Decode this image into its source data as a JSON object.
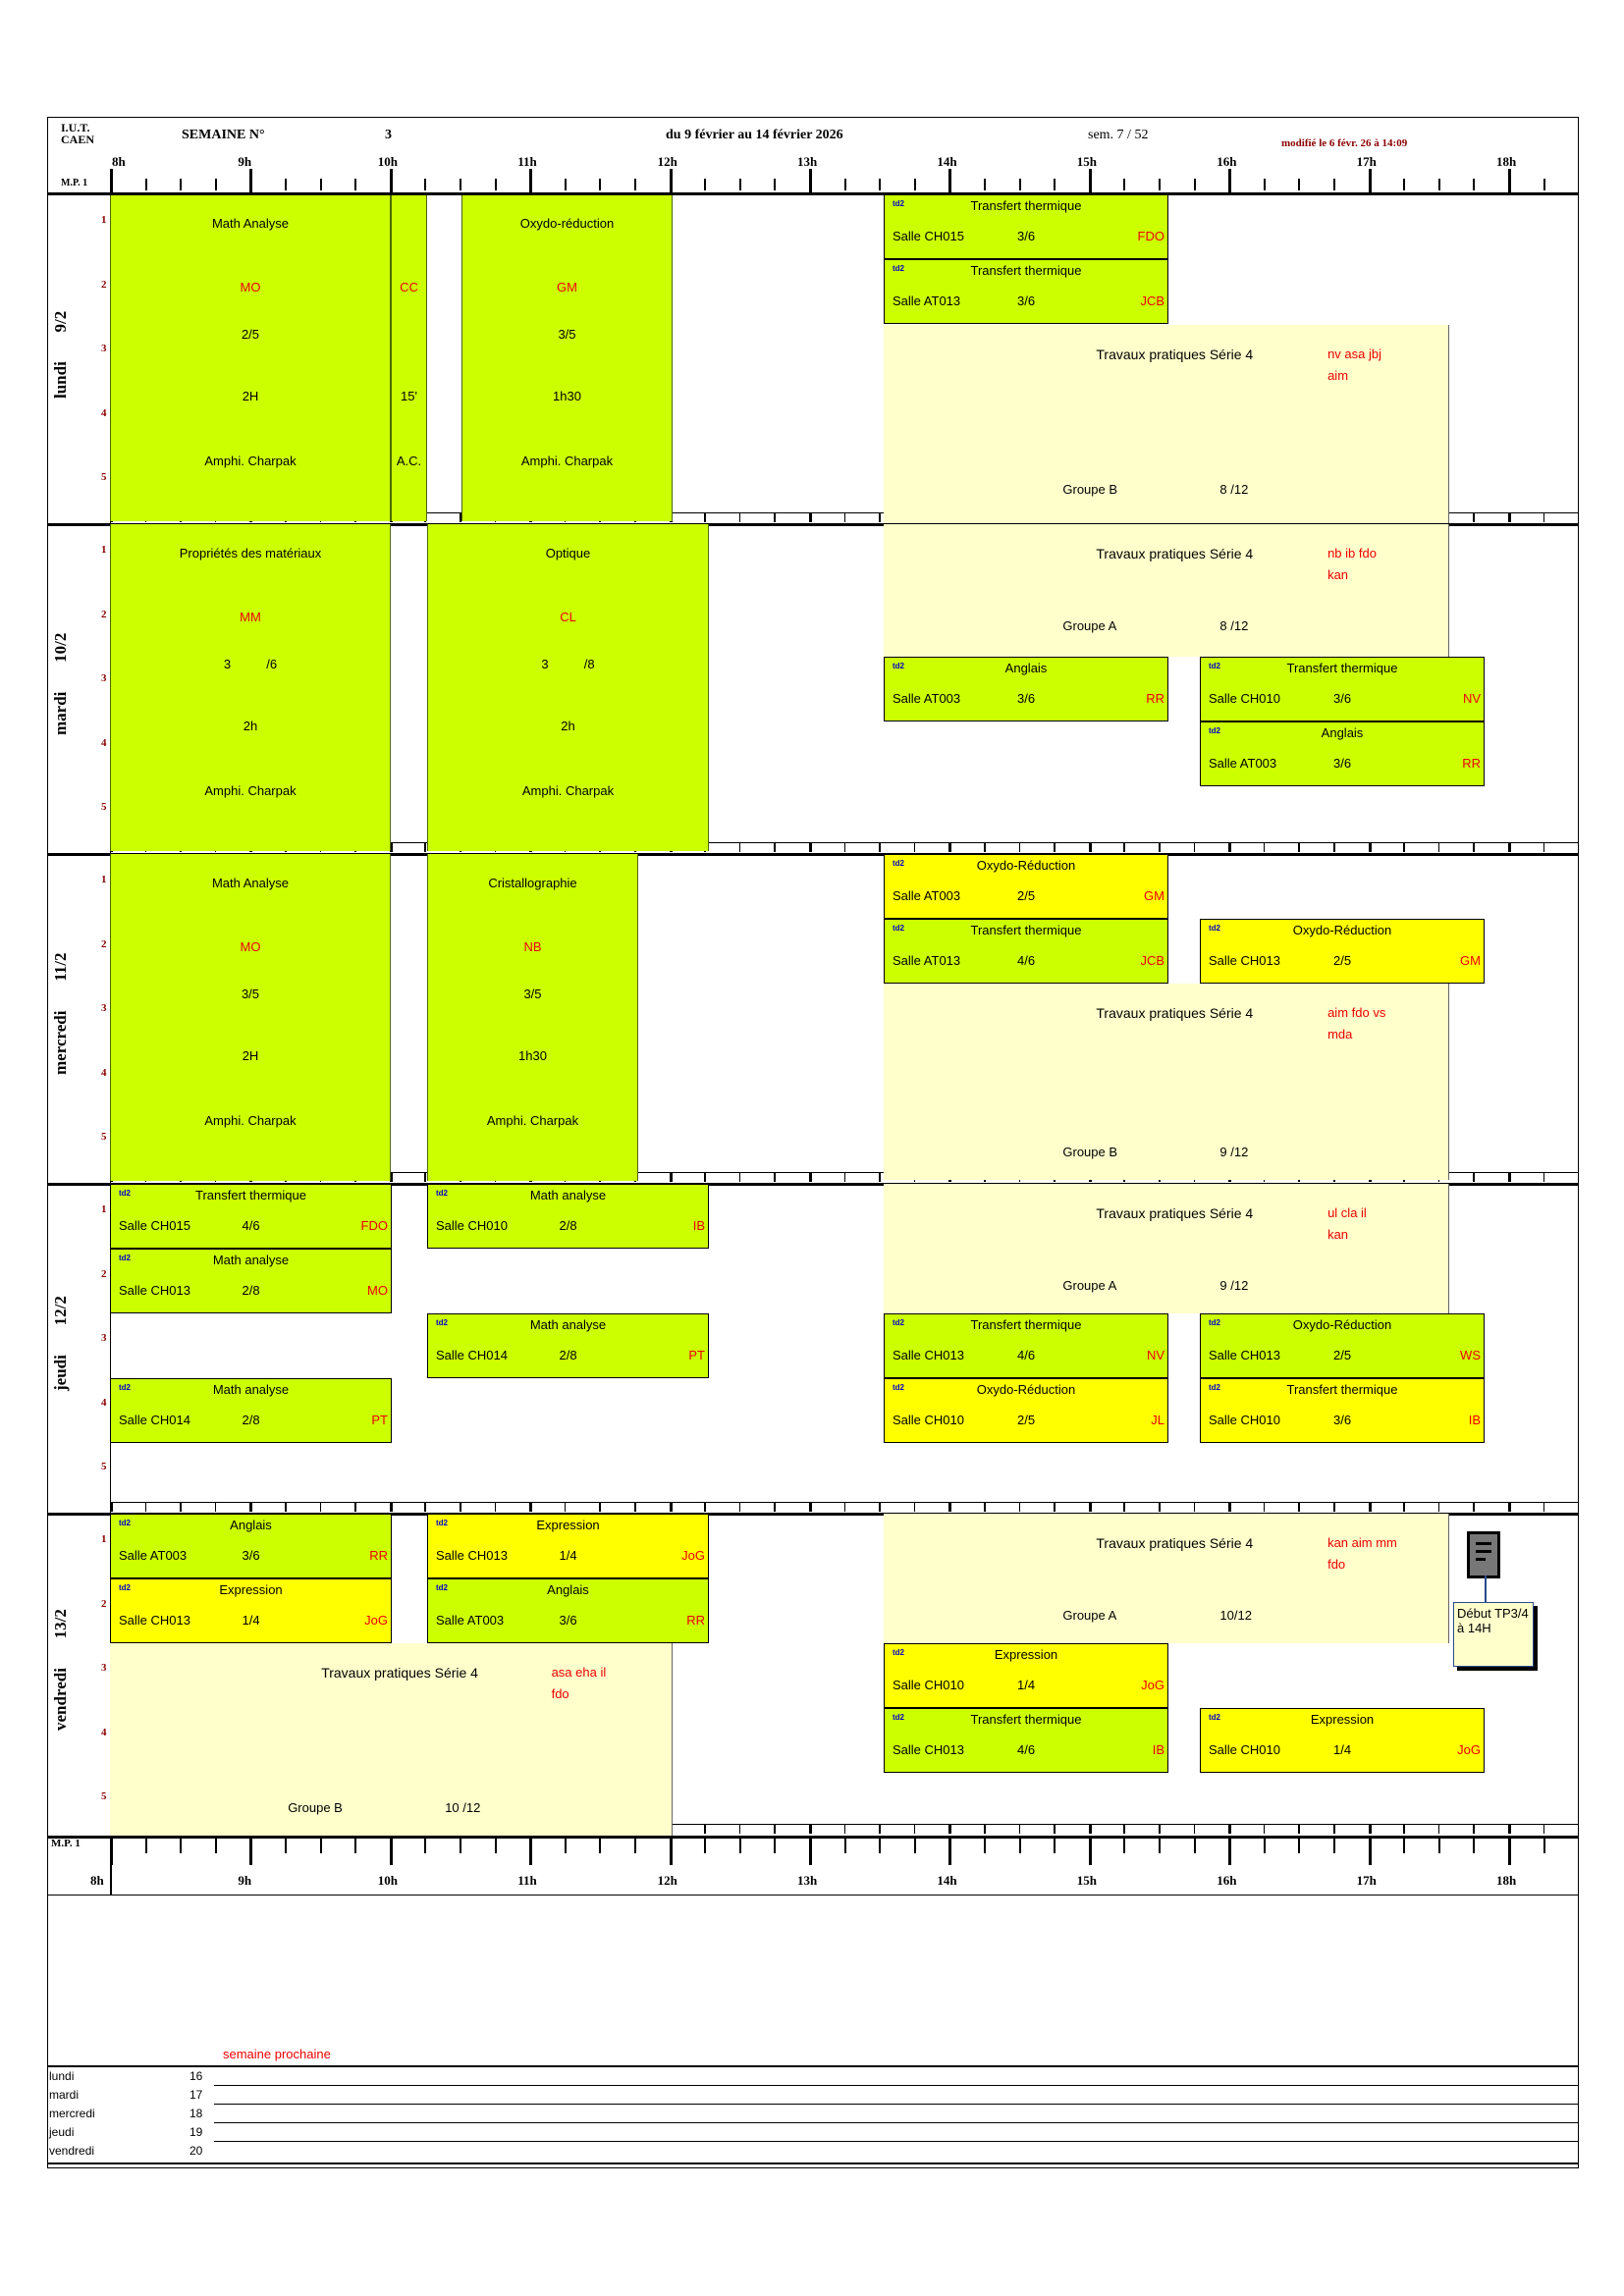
{
  "header": {
    "institution_line1": "I.U.T.",
    "institution_line2": "CAEN",
    "week_label": "SEMAINE N°",
    "week_number": "3",
    "date_range": "du 9 février au 14 février 2026",
    "semester_week": "sem. 7 / 52",
    "modified": "modifié le 6 févr. 26 à 14:09",
    "group": "M.P. 1"
  },
  "hours": [
    "8h",
    "9h",
    "10h",
    "11h",
    "12h",
    "13h",
    "14h",
    "15h",
    "16h",
    "17h",
    "18h"
  ],
  "slot_numbers": [
    "1",
    "2",
    "3",
    "4",
    "5"
  ],
  "days": [
    {
      "name": "lundi",
      "date": "9/2",
      "courses": [
        {
          "title": "Math Analyse",
          "teacher": "MO",
          "fraction": "2/5",
          "duration": "2H",
          "room": "Amphi. Charpak"
        },
        {
          "title": "",
          "teacher": "CC",
          "fraction": "",
          "duration": "15'",
          "room": "A.C."
        },
        {
          "title": "Oxydo-réduction",
          "teacher": "GM",
          "fraction": "3/5",
          "duration": "1h30",
          "room": "Amphi. Charpak"
        }
      ],
      "sessions": [
        {
          "tag": "td2",
          "title": "Transfert thermique",
          "room": "Salle CH015",
          "fraction": "3/6",
          "teacher": "FDO"
        },
        {
          "tag": "td2",
          "title": "Transfert thermique",
          "room": "Salle AT013",
          "fraction": "3/6",
          "teacher": "JCB"
        }
      ],
      "tp": {
        "title": "Travaux pratiques Série 4",
        "teachers_line1": "nv   asa   jbj",
        "teachers_line2": "aim",
        "group": "Groupe  B",
        "fraction": "8 /12"
      }
    },
    {
      "name": "mardi",
      "date": "10/2",
      "courses": [
        {
          "title": "Propriétés des matériaux",
          "teacher": "MM",
          "fraction_a": "3",
          "fraction_b": "/6",
          "duration": "2h",
          "room": "Amphi. Charpak"
        },
        {
          "title": "Optique",
          "teacher": "CL",
          "fraction_a": "3",
          "fraction_b": "/8",
          "duration": "2h",
          "room": "Amphi. Charpak"
        }
      ],
      "tp": {
        "title": "Travaux pratiques Série 4",
        "teachers_line1": "nb    ib    fdo",
        "teachers_line2": "kan",
        "group": "Groupe  A",
        "fraction": "8 /12"
      },
      "sessions": [
        {
          "tag": "td2",
          "title": "Anglais",
          "room": "Salle AT003",
          "fraction": "3/6",
          "teacher": "RR"
        },
        {
          "tag": "td2",
          "title": "Transfert thermique",
          "room": "Salle CH010",
          "fraction": "3/6",
          "teacher": "NV"
        },
        {
          "tag": "td2",
          "title": "Anglais",
          "room": "Salle AT003",
          "fraction": "3/6",
          "teacher": "RR"
        }
      ]
    },
    {
      "name": "mercredi",
      "date": "11/2",
      "courses": [
        {
          "title": "Math Analyse",
          "teacher": "MO",
          "fraction": "3/5",
          "duration": "2H",
          "room": "Amphi. Charpak"
        },
        {
          "title": "Cristallographie",
          "teacher": "NB",
          "fraction": "3/5",
          "duration": "1h30",
          "room": "Amphi. Charpak"
        }
      ],
      "sessions": [
        {
          "tag": "td2",
          "title": "Oxydo-Réduction",
          "room": "Salle AT003",
          "fraction": "2/5",
          "teacher": "GM"
        },
        {
          "tag": "td2",
          "title": "Transfert thermique",
          "room": "Salle AT013",
          "fraction": "4/6",
          "teacher": "JCB"
        },
        {
          "tag": "td2",
          "title": "Oxydo-Réduction",
          "room": "Salle CH013",
          "fraction": "2/5",
          "teacher": "GM"
        }
      ],
      "tp": {
        "title": "Travaux pratiques Série 4",
        "teachers_line1": "aim  fdo   vs",
        "teachers_line2": "mda",
        "group": "Groupe  B",
        "fraction": "9 /12"
      }
    },
    {
      "name": "jeudi",
      "date": "12/2",
      "sessions": [
        {
          "tag": "td2",
          "title": "Transfert thermique",
          "room": "Salle CH015",
          "fraction": "4/6",
          "teacher": "FDO"
        },
        {
          "tag": "td2",
          "title": "Math analyse",
          "room": "Salle CH013",
          "fraction": "2/8",
          "teacher": "MO"
        },
        {
          "tag": "td2",
          "title": "Math analyse",
          "room": "Salle CH014",
          "fraction": "2/8",
          "teacher": "PT"
        },
        {
          "tag": "td2",
          "title": "Math analyse",
          "room": "Salle CH010",
          "fraction": "2/8",
          "teacher": "IB"
        },
        {
          "tag": "td2",
          "title": "Math analyse",
          "room": "Salle CH014",
          "fraction": "2/8",
          "teacher": "PT"
        },
        {
          "tag": "td2",
          "title": "Transfert thermique",
          "room": "Salle CH013",
          "fraction": "4/6",
          "teacher": "NV"
        },
        {
          "tag": "td2",
          "title": "Oxydo-Réduction",
          "room": "Salle CH010",
          "fraction": "2/5",
          "teacher": "JL"
        },
        {
          "tag": "td2",
          "title": "Oxydo-Réduction",
          "room": "Salle CH013",
          "fraction": "2/5",
          "teacher": "WS"
        },
        {
          "tag": "td2",
          "title": "Transfert thermique",
          "room": "Salle CH010",
          "fraction": "3/6",
          "teacher": "IB"
        }
      ],
      "tp": {
        "title": "Travaux pratiques Série 4",
        "teachers_line1": "ul    cla    il",
        "teachers_line2": "kan",
        "group": "Groupe  A",
        "fraction": "9 /12"
      }
    },
    {
      "name": "vendredi",
      "date": "13/2",
      "sessions": [
        {
          "tag": "td2",
          "title": "Anglais",
          "room": "Salle AT003",
          "fraction": "3/6",
          "teacher": "RR"
        },
        {
          "tag": "td2",
          "title": "Expression",
          "room": "Salle CH013",
          "fraction": "1/4",
          "teacher": "JoG"
        },
        {
          "tag": "td2",
          "title": "Expression",
          "room": "Salle CH013",
          "fraction": "1/4",
          "teacher": "JoG"
        },
        {
          "tag": "td2",
          "title": "Anglais",
          "room": "Salle AT003",
          "fraction": "3/6",
          "teacher": "RR"
        },
        {
          "tag": "td2",
          "title": "Expression",
          "room": "Salle CH010",
          "fraction": "1/4",
          "teacher": "JoG"
        },
        {
          "tag": "td2",
          "title": "Transfert thermique",
          "room": "Salle CH013",
          "fraction": "4/6",
          "teacher": "IB"
        },
        {
          "tag": "td2",
          "title": "Expression",
          "room": "Salle CH010",
          "fraction": "1/4",
          "teacher": "JoG"
        }
      ],
      "tp_morning": {
        "title": "Travaux pratiques Série 4",
        "teachers_line1": "asa  eha    il",
        "teachers_line2": "fdo",
        "group": "Groupe  B",
        "fraction": "10 /12"
      },
      "tp": {
        "title": "Travaux pratiques Série 4",
        "teachers_line1": "kan  aim  mm",
        "teachers_line2": "fdo",
        "group": "Groupe  A",
        "fraction": "10/12"
      },
      "note": {
        "icon": "document-note-icon",
        "text": "Début TP3/4 à 14H"
      }
    }
  ],
  "footer": {
    "next_week_label": "semaine prochaine",
    "rows": [
      {
        "day": "lundi",
        "date": "16"
      },
      {
        "day": "mardi",
        "date": "17"
      },
      {
        "day": "mercredi",
        "date": "18"
      },
      {
        "day": "jeudi",
        "date": "19"
      },
      {
        "day": "vendredi",
        "date": "20"
      }
    ]
  },
  "colors": {
    "lecture": "#ccff00",
    "expression": "#ffff00",
    "tp": "#ffffcc",
    "teacher": "#ee0000",
    "slot": "#8b0000"
  }
}
